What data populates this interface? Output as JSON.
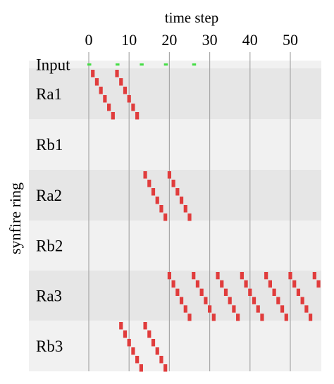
{
  "chart_data": {
    "type": "raster",
    "xlabel": "time step",
    "ylabel": "synfire ring",
    "xlim": [
      -1,
      58
    ],
    "xticks": [
      0,
      10,
      20,
      30,
      40,
      50
    ],
    "xtick_labels": [
      "0",
      "10",
      "20",
      "30",
      "40",
      "50"
    ],
    "grid": true,
    "rows": [
      {
        "label": "Input",
        "neurons": 1
      },
      {
        "label": "Ra1",
        "neurons": 6
      },
      {
        "label": "Rb1",
        "neurons": 6
      },
      {
        "label": "Ra2",
        "neurons": 6
      },
      {
        "label": "Rb2",
        "neurons": 6
      },
      {
        "label": "Ra3",
        "neurons": 6
      },
      {
        "label": "Rb3",
        "neurons": 6
      }
    ],
    "series": [
      {
        "name": "input",
        "color": "#44dd44",
        "spikes": [
          [
            0,
            0
          ],
          [
            7,
            0
          ],
          [
            13,
            0
          ],
          [
            19,
            0
          ],
          [
            26,
            0
          ]
        ]
      },
      {
        "name": "ring",
        "color": "#e03c3c",
        "spikes": [
          {
            "row": "Ra1",
            "starts": [
              1,
              7
            ]
          },
          {
            "row": "Ra2",
            "starts": [
              14,
              20
            ]
          },
          {
            "row": "Ra3",
            "starts": [
              20,
              26,
              32,
              38,
              44,
              50,
              56
            ]
          },
          {
            "row": "Rb3",
            "starts": [
              8,
              14
            ]
          }
        ]
      }
    ]
  },
  "colors": {
    "band_light": "#f1f1f1",
    "band_dark": "#e6e6e6",
    "grid": "#a8a8a8",
    "input_spike": "#44dd44",
    "ring_spike": "#e03c3c"
  }
}
